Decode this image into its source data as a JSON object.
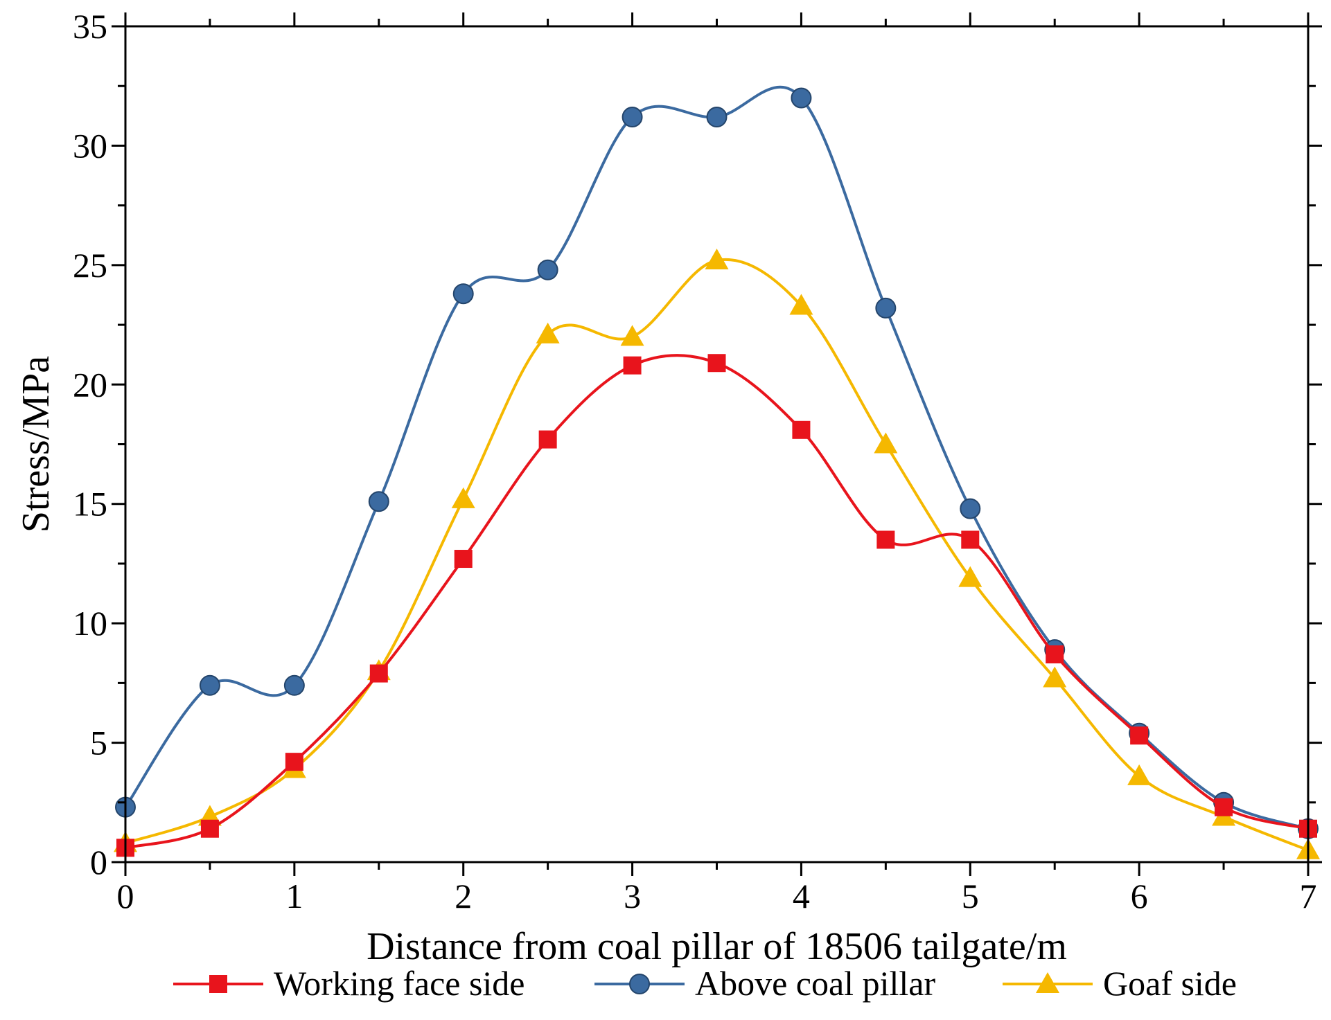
{
  "chart_data": {
    "type": "line",
    "title": "",
    "xlabel": "Distance from coal pillar of 18506 tailgate/m",
    "ylabel": "Stress/MPa",
    "xlim": [
      0,
      7
    ],
    "ylim": [
      0,
      35
    ],
    "x_ticks": [
      0,
      1,
      2,
      3,
      4,
      5,
      6,
      7
    ],
    "y_ticks": [
      0,
      5,
      10,
      15,
      20,
      25,
      30,
      35
    ],
    "grid": false,
    "legend_position": "bottom",
    "x": [
      0,
      0.5,
      1,
      1.5,
      2,
      2.5,
      3,
      3.5,
      4,
      4.5,
      5,
      5.5,
      6,
      6.5,
      7
    ],
    "series": [
      {
        "name": "Working face side",
        "color": "#e8141c",
        "marker": "square",
        "values": [
          0.6,
          1.4,
          4.2,
          7.9,
          12.7,
          17.7,
          20.8,
          20.9,
          18.1,
          13.5,
          13.5,
          8.7,
          5.3,
          2.3,
          1.4
        ]
      },
      {
        "name": "Above coal pillar",
        "color": "#3b6aa0",
        "marker": "circle",
        "values": [
          2.3,
          7.4,
          7.4,
          15.1,
          23.8,
          24.8,
          31.2,
          31.2,
          32.0,
          23.2,
          14.8,
          8.9,
          5.4,
          2.5,
          1.4
        ]
      },
      {
        "name": "Goaf side",
        "color": "#f5b800",
        "marker": "triangle",
        "values": [
          0.8,
          1.9,
          3.9,
          8.0,
          15.2,
          22.1,
          22.0,
          25.2,
          23.3,
          17.5,
          11.9,
          7.7,
          3.6,
          1.9,
          0.5
        ]
      }
    ]
  }
}
